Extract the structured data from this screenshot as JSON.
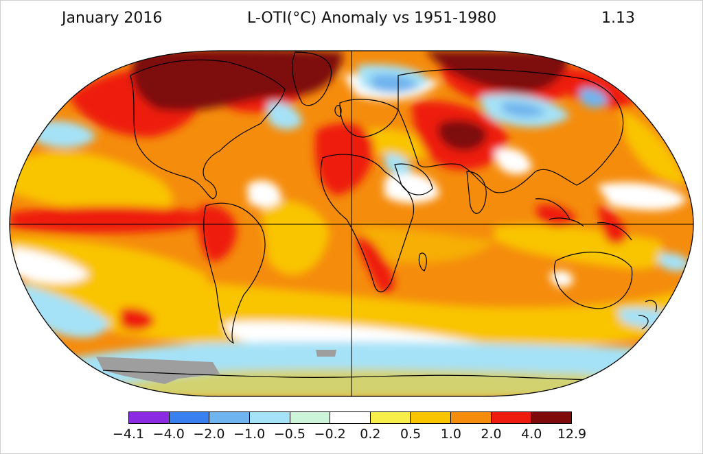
{
  "header": {
    "date": "January 2016",
    "title": "L-OTI(°C) Anomaly vs 1951-1980",
    "global_mean": "1.13"
  },
  "legend": {
    "colors": [
      "#8a2be2",
      "#3a7ff0",
      "#6fb4ee",
      "#a5e2f7",
      "#ccf4d9",
      "#ffffff",
      "#f7ee4a",
      "#f9c400",
      "#f58c0c",
      "#ee1c0f",
      "#7e0a0a"
    ],
    "tick_labels": [
      "−4.1",
      "−4.0",
      "−2.0",
      "−1.0",
      "−0.5",
      "−0.2",
      "0.2",
      "0.5",
      "1.0",
      "2.0",
      "4.0",
      "12.9"
    ]
  },
  "map": {
    "projection": "robinson",
    "base_color": "#f58c0c",
    "land_outline_color": "#000000",
    "no_data_color": "#9e9e9e"
  }
}
